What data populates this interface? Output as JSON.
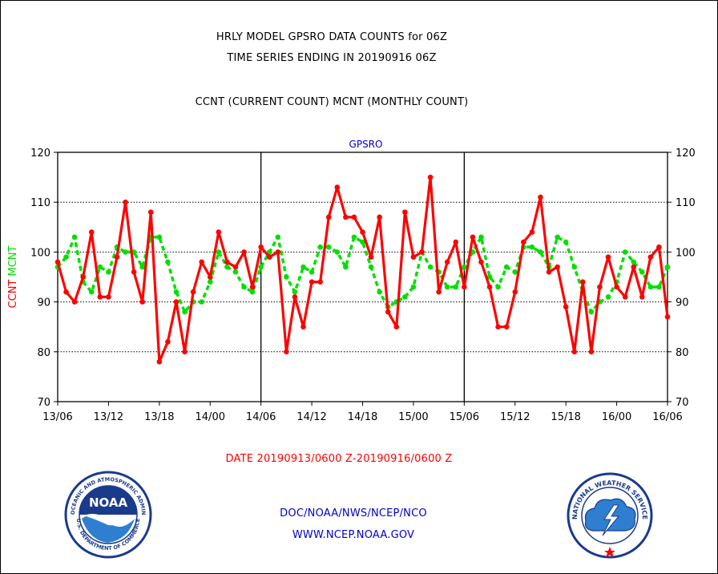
{
  "header": {
    "title_line1": "HRLY MODEL GPSRO DATA COUNTS for 06Z",
    "title_line2": "TIME SERIES ENDING IN 20190916 06Z",
    "subtitle": "CCNT (CURRENT COUNT) MCNT (MONTHLY COUNT)"
  },
  "footer": {
    "date_range": "DATE 20190913/0600 Z-20190916/0600 Z",
    "agency": "DOC/NOAA/NWS/NCEP/NCO",
    "website": "WWW.NCEP.NOAA.GOV"
  },
  "logos": {
    "left": {
      "center_text": "NOAA",
      "ring_top": "NATIONAL OCEANIC AND ATMOSPHERIC ADMINISTRATION",
      "ring_bottom": "U.S. DEPARTMENT OF COMMERCE"
    },
    "right": {
      "ring_top": "NATIONAL WEATHER SERVICE"
    }
  },
  "colors": {
    "ccnt": "#ff0000",
    "mcnt": "#00e000",
    "title_blue": "#0000cc",
    "date_red": "#ff0000"
  },
  "chart_data": {
    "type": "line",
    "title": "GPSRO",
    "ylabel_left": [
      {
        "text": "CCNT",
        "color": "#ff0000"
      },
      {
        "text": "MCNT",
        "color": "#00e000"
      }
    ],
    "ylim": [
      70,
      120
    ],
    "yticks": [
      70,
      80,
      90,
      100,
      110,
      120
    ],
    "grid": true,
    "xlim": [
      0,
      72
    ],
    "xticks": [
      {
        "x": 0,
        "label": "13/06"
      },
      {
        "x": 6,
        "label": "13/12"
      },
      {
        "x": 12,
        "label": "13/18"
      },
      {
        "x": 18,
        "label": "14/00"
      },
      {
        "x": 24,
        "label": "14/06"
      },
      {
        "x": 30,
        "label": "14/12"
      },
      {
        "x": 36,
        "label": "14/18"
      },
      {
        "x": 42,
        "label": "15/00"
      },
      {
        "x": 48,
        "label": "15/06"
      },
      {
        "x": 54,
        "label": "15/12"
      },
      {
        "x": 60,
        "label": "15/18"
      },
      {
        "x": 66,
        "label": "16/00"
      },
      {
        "x": 72,
        "label": "16/06"
      }
    ],
    "day_separators": [
      24,
      48
    ],
    "series": [
      {
        "name": "CCNT",
        "color": "#ff0000",
        "values": [
          98,
          92,
          90,
          95,
          104,
          91,
          91,
          99,
          110,
          96,
          90,
          108,
          78,
          82,
          90,
          80,
          92,
          98,
          95,
          104,
          98,
          97,
          100,
          93,
          101,
          99,
          100,
          80,
          91,
          85,
          94,
          94,
          107,
          113,
          107,
          107,
          104,
          99,
          107,
          88,
          85,
          108,
          99,
          100,
          115,
          92,
          98,
          102,
          93,
          103,
          98,
          93,
          85,
          85,
          92,
          102,
          104,
          111,
          96,
          97,
          89,
          80,
          94,
          80,
          93,
          99,
          93,
          91,
          97,
          91,
          99,
          101,
          87
        ]
      },
      {
        "name": "MCNT",
        "color": "#00e000",
        "values": [
          97,
          99,
          103,
          94,
          92,
          97,
          96,
          101,
          100,
          100,
          97,
          103,
          103,
          98,
          92,
          88,
          90,
          90,
          94,
          100,
          97,
          96,
          93,
          92,
          97,
          100,
          103,
          95,
          92,
          97,
          96,
          101,
          101,
          100,
          97,
          103,
          102,
          97,
          92,
          89,
          90,
          91,
          93,
          100,
          97,
          96,
          93,
          93,
          97,
          100,
          103,
          95,
          93,
          97,
          96,
          101,
          101,
          100,
          97,
          103,
          102,
          97,
          92,
          88,
          90,
          91,
          94,
          100,
          98,
          96,
          93,
          93,
          97
        ]
      }
    ]
  }
}
